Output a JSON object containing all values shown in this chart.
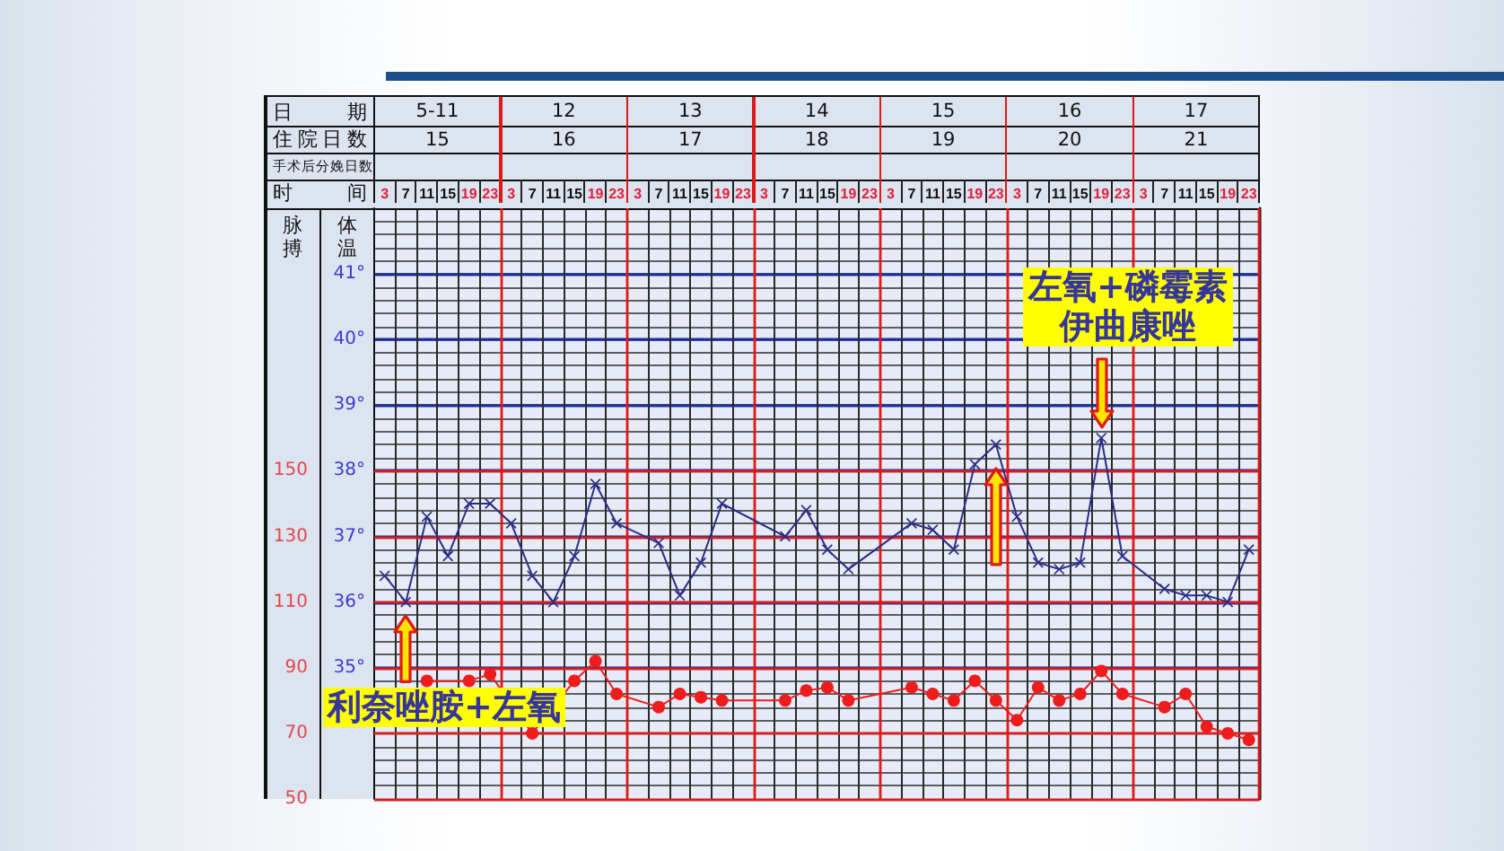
{
  "chart_data": {
    "type": "line",
    "categories": [
      "3",
      "7",
      "11",
      "15",
      "19",
      "23",
      "3",
      "7",
      "11",
      "15",
      "19",
      "23",
      "3",
      "7",
      "11",
      "15",
      "19",
      "23",
      "3",
      "7",
      "11",
      "15",
      "19",
      "23",
      "3",
      "7",
      "11",
      "15",
      "19",
      "23",
      "3",
      "7",
      "11",
      "15",
      "19",
      "23",
      "3",
      "7",
      "11",
      "15",
      "19",
      "23"
    ],
    "xlabel": "时间",
    "ylabel": "体温",
    "y2label": "脉搏",
    "ylim": [
      33,
      42
    ],
    "yticks": [
      {
        "value": 35,
        "label": "35°"
      },
      {
        "value": 36,
        "label": "36°"
      },
      {
        "value": 37,
        "label": "37°"
      },
      {
        "value": 38,
        "label": "38°"
      },
      {
        "value": 39,
        "label": "39°"
      },
      {
        "value": 40,
        "label": "40°"
      },
      {
        "value": 41,
        "label": "41°"
      }
    ],
    "y2lim": [
      50,
      230
    ],
    "y2ticks": [
      50,
      70,
      90,
      110,
      130,
      150
    ],
    "series": [
      {
        "color": "#2c2c86",
        "marker": "cross",
        "values": [
          36.4,
          36.0,
          37.3,
          36.7,
          37.5,
          37.5,
          37.2,
          36.4,
          36.0,
          36.7,
          37.8,
          37.2,
          null,
          36.9,
          36.1,
          36.6,
          37.5,
          null,
          null,
          37.0,
          37.4,
          36.8,
          36.5,
          null,
          null,
          37.2,
          37.1,
          36.8,
          38.1,
          38.4,
          37.3,
          36.6,
          36.5,
          36.6,
          38.5,
          36.7,
          null,
          36.2,
          36.1,
          36.1,
          36.0,
          36.8
        ]
      },
      {
        "color": "#ee1c1c",
        "marker": "circle",
        "axis": "y2",
        "values": [
          null,
          null,
          86,
          null,
          86,
          88,
          null,
          70,
          null,
          86,
          92,
          82,
          null,
          78,
          82,
          81,
          80,
          null,
          null,
          80,
          83,
          84,
          80,
          null,
          null,
          84,
          82,
          80,
          86,
          80,
          74,
          84,
          80,
          82,
          89,
          82,
          null,
          78,
          82,
          72,
          70,
          68
        ]
      }
    ],
    "grid": true,
    "annotations": [
      "日期",
      "5-11",
      "12",
      "13",
      "14",
      "15",
      "16",
      "17",
      "住院日数",
      "15",
      "16",
      "17",
      "18",
      "19",
      "20",
      "21",
      "手术后分娩日数",
      "利奈唑胺+左氧",
      "左氧+磷霉素",
      "伊曲康唑"
    ]
  }
}
